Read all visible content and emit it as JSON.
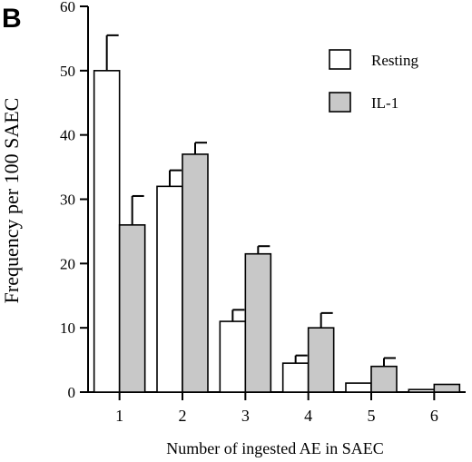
{
  "panel_label": "B",
  "chart_data": {
    "type": "bar",
    "xlabel": "Number of ingested AE in SAEC",
    "ylabel": "Frequency per 100 SAEC",
    "ylim": [
      0,
      60
    ],
    "yticks": [
      0,
      10,
      20,
      30,
      40,
      50,
      60
    ],
    "categories": [
      "1",
      "2",
      "3",
      "4",
      "5",
      "6"
    ],
    "series": [
      {
        "name": "Resting",
        "color": "#ffffff",
        "values": [
          50,
          32,
          11,
          4.5,
          1.4,
          0.4
        ],
        "errors": [
          5.5,
          2.5,
          1.8,
          1.2,
          0,
          0
        ]
      },
      {
        "name": "IL-1",
        "color": "#c8c8c8",
        "values": [
          26,
          37,
          21.5,
          10,
          4,
          1.2
        ],
        "errors": [
          4.5,
          1.8,
          1.2,
          2.3,
          1.3,
          0
        ]
      }
    ],
    "legend_position": "top-right",
    "grid": false
  }
}
